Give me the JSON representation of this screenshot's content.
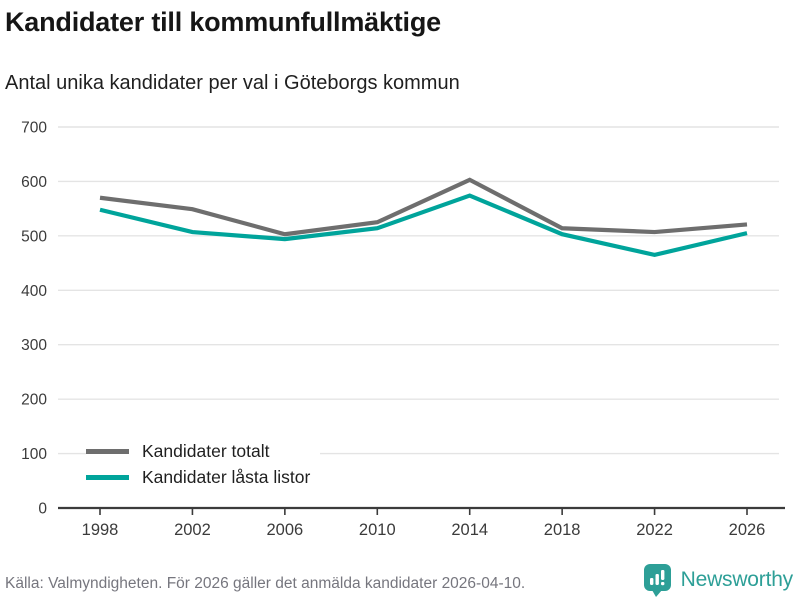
{
  "header": {
    "title": "Kandidater till kommunfullmäktige",
    "subtitle": "Antal unika kandidater per val i Göteborgs kommun"
  },
  "chart_data": {
    "type": "line",
    "title": "Kandidater till kommunfullmäktige",
    "subtitle": "Antal unika kandidater per val i Göteborgs kommun",
    "categories": [
      "1998",
      "2002",
      "2006",
      "2010",
      "2014",
      "2018",
      "2022",
      "2026"
    ],
    "series": [
      {
        "name": "Kandidater totalt",
        "color": "#6e6e6e",
        "values": [
          570,
          549,
          503,
          525,
          603,
          514,
          507,
          521
        ]
      },
      {
        "name": "Kandidater låsta listor",
        "color": "#00a49b",
        "values": [
          548,
          507,
          494,
          514,
          574,
          503,
          465,
          505
        ]
      }
    ],
    "xlabel": "",
    "ylabel": "",
    "ylim": [
      0,
      700
    ],
    "yticks": [
      0,
      100,
      200,
      300,
      400,
      500,
      600,
      700
    ],
    "grid": "horizontal",
    "legend_position": "inside-bottom-left"
  },
  "footer": {
    "source": "Källa: Valmyndigheten. För 2026 gäller det anmälda kandidater 2026-04-10.",
    "brand": "Newsworthy"
  },
  "colors": {
    "grid": "#e4e4e4",
    "axis": "#3b3b3b",
    "tick_label": "#3b3b3b",
    "brand_teal": "#2d9f97"
  }
}
